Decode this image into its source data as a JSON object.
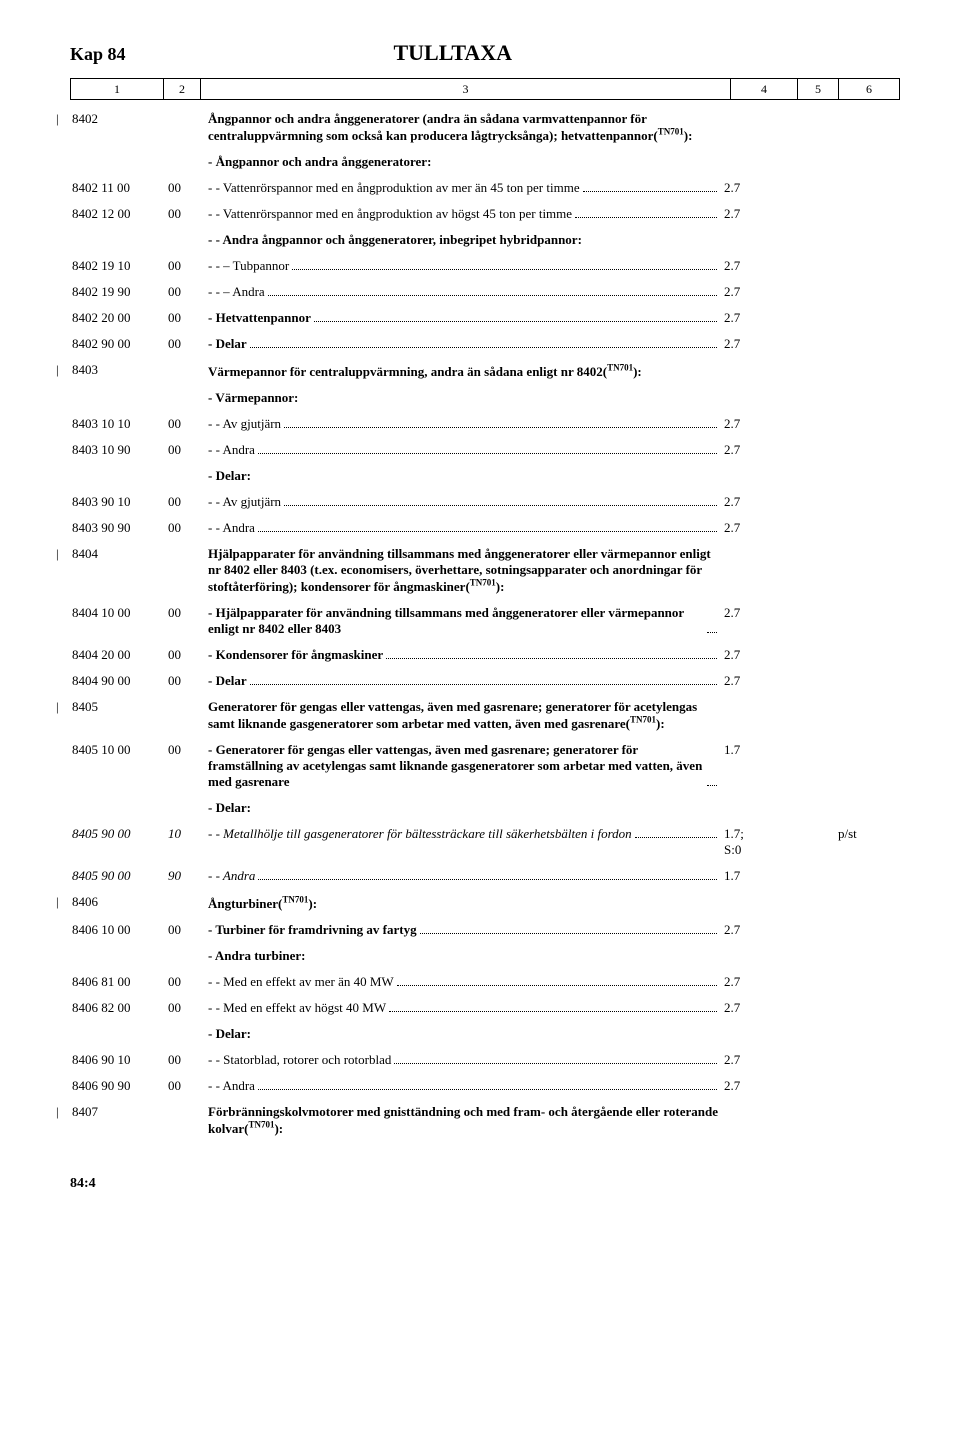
{
  "header": {
    "kap": "Kap 84",
    "title": "TULLTAXA"
  },
  "column_numbers": [
    "1",
    "2",
    "3",
    "4",
    "5",
    "6"
  ],
  "footer": "84:4",
  "rows": [
    {
      "pipe": true,
      "code": "8402",
      "desc_bold": true,
      "desc": "Ångpannor och andra ånggeneratorer (andra än sådana varmvattenpannor för centraluppvärmning som också kan producera lågtrycksånga); hetvattenpannor(",
      "sup": "TN701",
      "desc_tail": "):"
    },
    {
      "desc_bold": true,
      "desc": "-  Ångpannor och andra ånggeneratorer:"
    },
    {
      "code": "8402 11 00",
      "sub": "00",
      "dots": true,
      "desc": "-  -  Vattenrörspannor med en ångproduktion av mer än 45 ton per timme",
      "rate": "2.7"
    },
    {
      "code": "8402 12 00",
      "sub": "00",
      "dots": true,
      "desc": "-  -  Vattenrörspannor med en ångproduktion av högst 45 ton per timme",
      "rate": "2.7"
    },
    {
      "desc_bold": true,
      "desc": "-  -  Andra ångpannor och ånggeneratorer, inbegripet hybridpannor:"
    },
    {
      "code": "8402 19 10",
      "sub": "00",
      "dots": true,
      "desc": "-  -  – Tubpannor",
      "rate": "2.7"
    },
    {
      "code": "8402 19 90",
      "sub": "00",
      "dots": true,
      "desc": "-  -  – Andra",
      "rate": "2.7"
    },
    {
      "code": "8402 20 00",
      "sub": "00",
      "dots": true,
      "desc_bold": true,
      "desc": "-  Hetvattenpannor",
      "rate": "2.7"
    },
    {
      "code": "8402 90 00",
      "sub": "00",
      "dots": true,
      "desc_bold": true,
      "desc": "-  Delar",
      "rate": "2.7"
    },
    {
      "pipe": true,
      "code": "8403",
      "desc_bold": true,
      "desc": "Värmepannor för centraluppvärmning, andra än sådana enligt nr 8402(",
      "sup": "TN701",
      "desc_tail": "):"
    },
    {
      "desc_bold": true,
      "desc": "-  Värmepannor:"
    },
    {
      "code": "8403 10 10",
      "sub": "00",
      "dots": true,
      "desc": "-  -  Av gjutjärn",
      "rate": "2.7"
    },
    {
      "code": "8403 10 90",
      "sub": "00",
      "dots": true,
      "desc": "-  -  Andra",
      "rate": "2.7"
    },
    {
      "desc_bold": true,
      "desc": "-  Delar:"
    },
    {
      "code": "8403 90 10",
      "sub": "00",
      "dots": true,
      "desc": "-  -  Av gjutjärn",
      "rate": "2.7"
    },
    {
      "code": "8403 90 90",
      "sub": "00",
      "dots": true,
      "desc": "-  -  Andra",
      "rate": "2.7"
    },
    {
      "pipe": true,
      "code": "8404",
      "desc_bold": true,
      "desc": "Hjälpapparater för användning tillsammans med ånggeneratorer eller värmepannor enligt nr 8402 eller 8403 (t.ex. economisers, överhettare, sotningsapparater och anordningar för stoftåterföring); kondensorer för ångmaskiner(",
      "sup": "TN701",
      "desc_tail": "):"
    },
    {
      "code": "8404 10 00",
      "sub": "00",
      "dots": true,
      "desc_bold": true,
      "desc": "-  Hjälpapparater för användning tillsammans med ånggeneratorer eller värmepannor enligt nr 8402 eller 8403",
      "rate": "2.7"
    },
    {
      "code": "8404 20 00",
      "sub": "00",
      "dots": true,
      "desc_bold": true,
      "desc": "-  Kondensorer för ångmaskiner",
      "rate": "2.7"
    },
    {
      "code": "8404 90 00",
      "sub": "00",
      "dots": true,
      "desc_bold": true,
      "desc": "-  Delar",
      "rate": "2.7"
    },
    {
      "pipe": true,
      "code": "8405",
      "desc_bold": true,
      "desc": "Generatorer för gengas eller vattengas, även med gasrenare; generatorer för acetylengas samt liknande gasgeneratorer som arbetar med vatten, även med gasrenare(",
      "sup": "TN701",
      "desc_tail": "):"
    },
    {
      "code": "8405 10 00",
      "sub": "00",
      "dots": true,
      "desc_bold": true,
      "desc": "-  Generatorer för gengas eller vattengas, även med gasrenare; generatorer för framställning av acetylengas samt liknande gasgeneratorer som arbetar med vatten, även med gasrenare",
      "rate": "1.7"
    },
    {
      "desc_bold": true,
      "desc": "-  Delar:"
    },
    {
      "code": "8405 90 00",
      "sub": "10",
      "italic": true,
      "dots": true,
      "desc": "-  -  Metallhölje till gasgeneratorer för bältessträckare till säkerhetsbälten i fordon",
      "rate": "1.7;\nS:0",
      "unit": "p/st"
    },
    {
      "code": "8405 90 00",
      "sub": "90",
      "italic": true,
      "dots": true,
      "desc": "-  -  Andra",
      "rate": "1.7"
    },
    {
      "pipe": true,
      "code": "8406",
      "desc_bold": true,
      "desc": "Ångturbiner(",
      "sup": "TN701",
      "desc_tail": "):"
    },
    {
      "code": "8406 10 00",
      "sub": "00",
      "dots": true,
      "desc_bold": true,
      "desc": "-  Turbiner för framdrivning av fartyg",
      "rate": "2.7"
    },
    {
      "desc_bold": true,
      "desc": "-  Andra turbiner:"
    },
    {
      "code": "8406 81 00",
      "sub": "00",
      "dots": true,
      "desc": "-  -  Med en effekt av mer än 40 MW",
      "rate": "2.7"
    },
    {
      "code": "8406 82 00",
      "sub": "00",
      "dots": true,
      "desc": "-  -  Med en effekt av högst 40 MW",
      "rate": "2.7"
    },
    {
      "desc_bold": true,
      "desc": "-  Delar:"
    },
    {
      "code": "8406 90 10",
      "sub": "00",
      "dots": true,
      "desc": "-  -  Statorblad, rotorer och rotorblad",
      "rate": "2.7"
    },
    {
      "code": "8406 90 90",
      "sub": "00",
      "dots": true,
      "desc": "-  -  Andra",
      "rate": "2.7"
    },
    {
      "pipe": true,
      "code": "8407",
      "desc_bold": true,
      "desc": "Förbränningskolvmotorer med gnisttändning och med fram- och återgående eller roterande kolvar(",
      "sup": "TN701",
      "desc_tail": "):"
    }
  ]
}
